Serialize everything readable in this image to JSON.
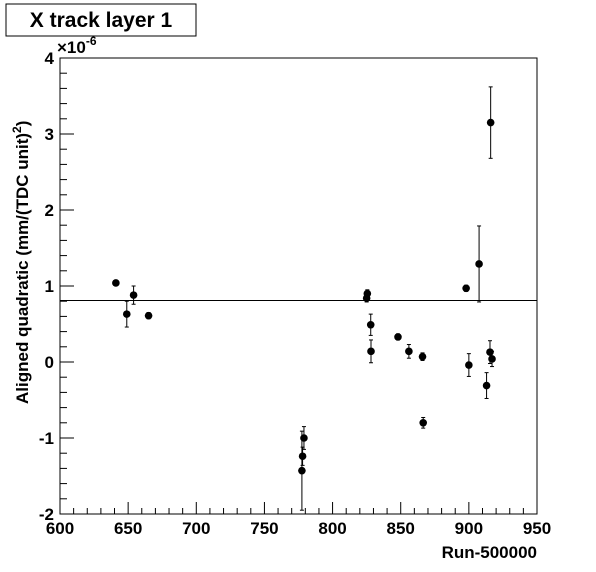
{
  "chart_data": {
    "type": "scatter",
    "title": "X track layer 1",
    "xlabel": "Run-500000",
    "ylabel_parts": [
      "Aligned quadratic (mm/(TDC unit)",
      "2",
      ")"
    ],
    "exponent": {
      "base": "×10",
      "power": "-6"
    },
    "xlim": [
      600,
      950
    ],
    "xticks": [
      600,
      650,
      700,
      750,
      800,
      850,
      900,
      950
    ],
    "ylim": [
      -2,
      4
    ],
    "yticks": [
      -2,
      -1,
      0,
      1,
      2,
      3,
      4
    ],
    "fit_line": 0.81,
    "color": "#000000",
    "series": [
      {
        "x": [
          641,
          649,
          654,
          665,
          777.5,
          778,
          779,
          825,
          825.5,
          828,
          828.2,
          848,
          856,
          866,
          866.5,
          898,
          900,
          907.5,
          913,
          915.5,
          916,
          917
        ],
        "values": [
          1.04,
          0.63,
          0.88,
          0.61,
          -1.43,
          -1.24,
          -1.0,
          0.84,
          0.9,
          0.49,
          0.14,
          0.33,
          0.14,
          0.07,
          -0.8,
          0.97,
          -0.04,
          1.29,
          -0.31,
          0.13,
          3.15,
          0.04
        ],
        "errors": [
          0.02,
          0.17,
          0.12,
          0.04,
          0.52,
          0.12,
          0.15,
          0.05,
          0.05,
          0.14,
          0.15,
          0.04,
          0.09,
          0.05,
          0.07,
          0.04,
          0.15,
          0.5,
          0.17,
          0.15,
          0.47,
          0.1
        ]
      }
    ]
  }
}
